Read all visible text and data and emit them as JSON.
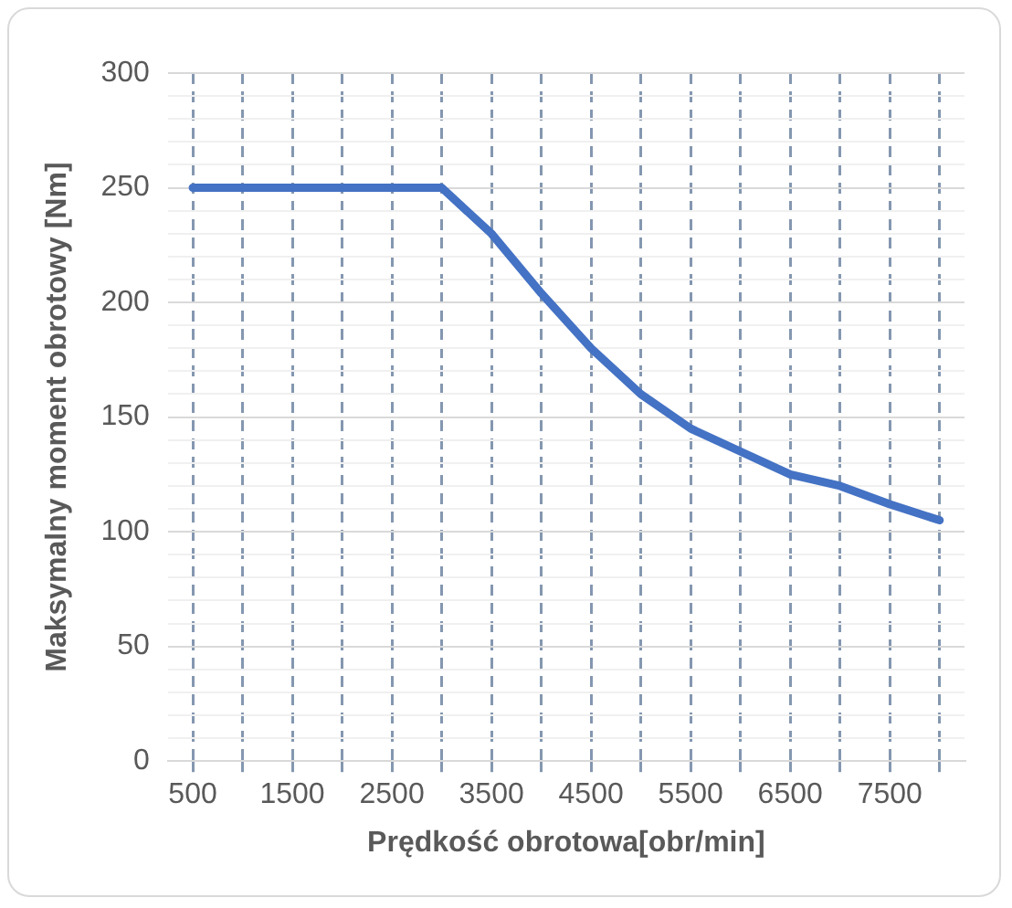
{
  "chart_data": {
    "type": "line",
    "xlabel": "Prędkość obrotowa[obr/min]",
    "ylabel": "Maksymalny moment obrotowy [Nm]",
    "categories": [
      "500",
      null,
      "1500",
      null,
      "2500",
      null,
      "3500",
      null,
      "4500",
      null,
      "5500",
      null,
      "6500",
      null,
      "7500",
      null
    ],
    "series": [
      {
        "color": "#4472c4",
        "values": [
          250,
          250,
          250,
          250,
          250,
          250,
          230,
          204,
          180,
          160,
          145,
          135,
          125,
          120,
          112,
          105
        ]
      }
    ],
    "ylim": [
      0,
      300
    ],
    "yticks": [
      0,
      {
        "value": 10,
        "label": null
      },
      {
        "value": 20,
        "label": null
      },
      {
        "value": 30,
        "label": null
      },
      {
        "value": 40,
        "label": null
      },
      50,
      {
        "value": 60,
        "label": null
      },
      {
        "value": 70,
        "label": null
      },
      {
        "value": 80,
        "label": null
      },
      {
        "value": 90,
        "label": null
      },
      100,
      {
        "value": 110,
        "label": null
      },
      {
        "value": 120,
        "label": null
      },
      {
        "value": 130,
        "label": null
      },
      {
        "value": 140,
        "label": null
      },
      150,
      {
        "value": 160,
        "label": null
      },
      {
        "value": 170,
        "label": null
      },
      {
        "value": 180,
        "label": null
      },
      {
        "value": 190,
        "label": null
      },
      200,
      {
        "value": 210,
        "label": null
      },
      {
        "value": 220,
        "label": null
      },
      {
        "value": 230,
        "label": null
      },
      {
        "value": 240,
        "label": null
      },
      250,
      {
        "value": 260,
        "label": null
      },
      {
        "value": 270,
        "label": null
      },
      {
        "value": 280,
        "label": null
      },
      {
        "value": 290,
        "label": null
      },
      300
    ],
    "grid": true,
    "legend": false,
    "marker": "none",
    "line_style": "solid"
  }
}
